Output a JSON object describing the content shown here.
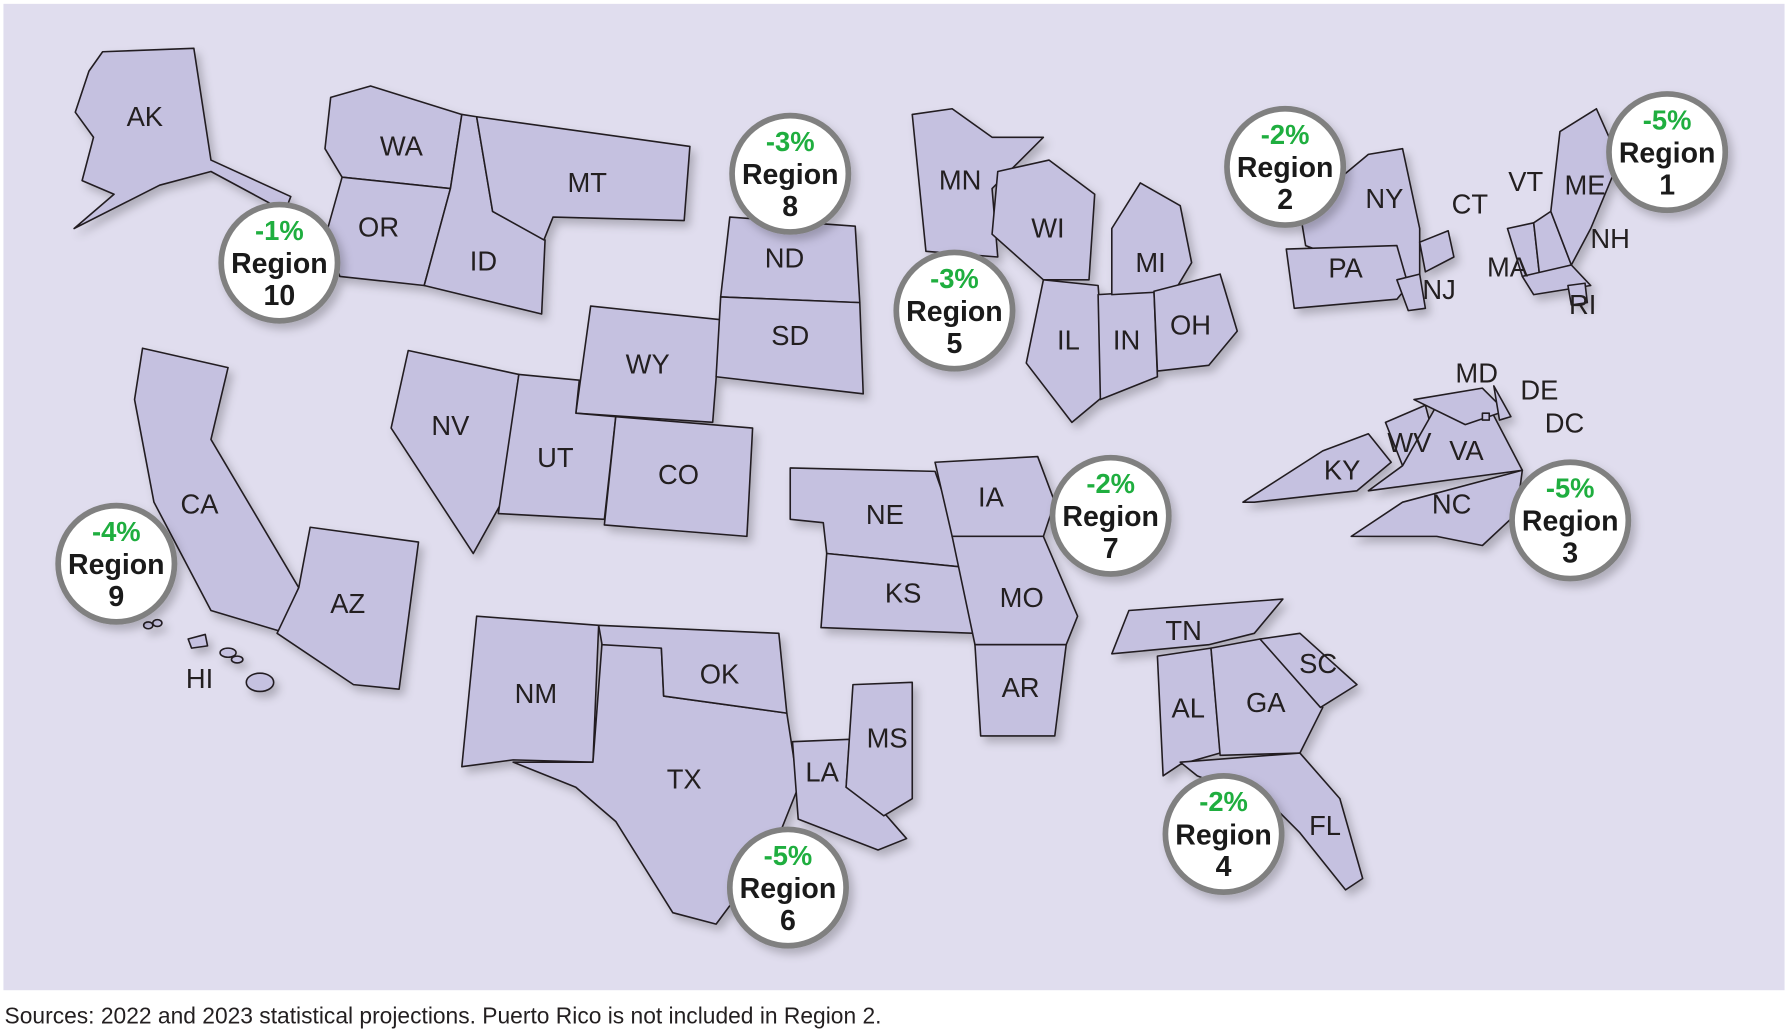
{
  "colors": {
    "background": "#e0ddee",
    "state_fill": "#c5c1e0",
    "percent_text": "#1fae3f",
    "circle_border": "#808080"
  },
  "states": [
    "AK",
    "WA",
    "OR",
    "ID",
    "MT",
    "WY",
    "ND",
    "SD",
    "NV",
    "UT",
    "CO",
    "CA",
    "AZ",
    "HI",
    "NM",
    "TX",
    "OK",
    "LA",
    "MS",
    "NE",
    "KS",
    "IA",
    "MO",
    "AR",
    "MN",
    "WI",
    "IL",
    "IN",
    "MI",
    "OH",
    "NY",
    "PA",
    "NJ",
    "CT",
    "VT",
    "NH",
    "ME",
    "MA",
    "RI",
    "KY",
    "WV",
    "VA",
    "MD",
    "DE",
    "DC",
    "NC",
    "TN",
    "AL",
    "GA",
    "SC",
    "FL"
  ],
  "regions": [
    {
      "name": "Region",
      "number": "1",
      "change": "-5%"
    },
    {
      "name": "Region",
      "number": "2",
      "change": "-2%"
    },
    {
      "name": "Region",
      "number": "3",
      "change": "-5%"
    },
    {
      "name": "Region",
      "number": "4",
      "change": "-2%"
    },
    {
      "name": "Region",
      "number": "5",
      "change": "-3%"
    },
    {
      "name": "Region",
      "number": "6",
      "change": "-5%"
    },
    {
      "name": "Region",
      "number": "7",
      "change": "-2%"
    },
    {
      "name": "Region",
      "number": "8",
      "change": "-3%"
    },
    {
      "name": "Region",
      "number": "9",
      "change": "-4%"
    },
    {
      "name": "Region",
      "number": "10",
      "change": "-1%"
    }
  ],
  "caption": "Sources: 2022 and 2023 statistical projections. Puerto Rico is not included in Region 2."
}
